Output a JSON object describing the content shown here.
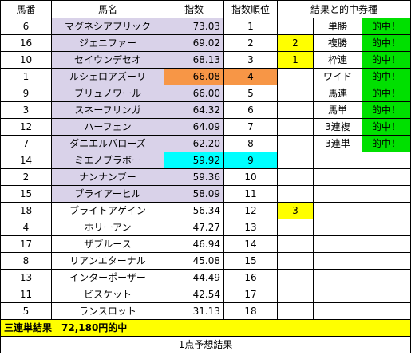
{
  "headers": {
    "number": "馬番",
    "name": "馬名",
    "index": "指数",
    "rank": "指数順位",
    "result": "結果と的中券種"
  },
  "rows": [
    {
      "no": "6",
      "name": "マグネシアブリック",
      "index": "73.03",
      "rank": "1",
      "mark": "",
      "ticket": "単勝",
      "hit": "的中！"
    },
    {
      "no": "16",
      "name": "ジェニファー",
      "index": "69.02",
      "rank": "2",
      "mark": "2",
      "ticket": "複勝",
      "hit": "的中！"
    },
    {
      "no": "10",
      "name": "セイウンデセオ",
      "index": "68.13",
      "rank": "3",
      "mark": "1",
      "ticket": "枠連",
      "hit": "的中！"
    },
    {
      "no": "1",
      "name": "ルシェロアズーリ",
      "index": "66.08",
      "rank": "4",
      "mark": "",
      "ticket": "ワイド",
      "hit": "的中！"
    },
    {
      "no": "9",
      "name": "ブリュノワール",
      "index": "66.00",
      "rank": "5",
      "mark": "",
      "ticket": "馬連",
      "hit": "的中！"
    },
    {
      "no": "3",
      "name": "スネーフリンガ",
      "index": "64.32",
      "rank": "6",
      "mark": "",
      "ticket": "馬単",
      "hit": "的中！"
    },
    {
      "no": "12",
      "name": "ハーフェン",
      "index": "64.09",
      "rank": "7",
      "mark": "",
      "ticket": "3連複",
      "hit": "的中！"
    },
    {
      "no": "7",
      "name": "ダニエルバローズ",
      "index": "62.20",
      "rank": "8",
      "mark": "",
      "ticket": "3連単",
      "hit": "的中！"
    },
    {
      "no": "14",
      "name": "ミエノブラボー",
      "index": "59.92",
      "rank": "9",
      "mark": "",
      "ticket": "",
      "hit": ""
    },
    {
      "no": "2",
      "name": "ナンナンブー",
      "index": "59.36",
      "rank": "10",
      "mark": "",
      "ticket": "",
      "hit": ""
    },
    {
      "no": "15",
      "name": "ブライアーヒル",
      "index": "58.09",
      "rank": "11",
      "mark": "",
      "ticket": "",
      "hit": ""
    },
    {
      "no": "18",
      "name": "ブライトアゲイン",
      "index": "56.34",
      "rank": "12",
      "mark": "3",
      "ticket": "",
      "hit": ""
    },
    {
      "no": "4",
      "name": "ホリーアン",
      "index": "47.27",
      "rank": "13",
      "mark": "",
      "ticket": "",
      "hit": ""
    },
    {
      "no": "17",
      "name": "ザブルース",
      "index": "46.94",
      "rank": "14",
      "mark": "",
      "ticket": "",
      "hit": ""
    },
    {
      "no": "8",
      "name": "リアンエターナル",
      "index": "45.08",
      "rank": "15",
      "mark": "",
      "ticket": "",
      "hit": ""
    },
    {
      "no": "13",
      "name": "インターポーザー",
      "index": "44.49",
      "rank": "16",
      "mark": "",
      "ticket": "",
      "hit": ""
    },
    {
      "no": "11",
      "name": "ビスケット",
      "index": "42.54",
      "rank": "17",
      "mark": "",
      "ticket": "",
      "hit": ""
    },
    {
      "no": "5",
      "name": "ランスロット",
      "index": "31.13",
      "rank": "18",
      "mark": "",
      "ticket": "",
      "hit": ""
    }
  ],
  "summary": "三連単結果　72,180円的中",
  "footer": "1点予想結果",
  "colors": {
    "lavender": "#d9d2e9",
    "orange": "#f79646",
    "cyan": "#00ffff",
    "yellow": "#ffff00",
    "green": "#00e000"
  }
}
